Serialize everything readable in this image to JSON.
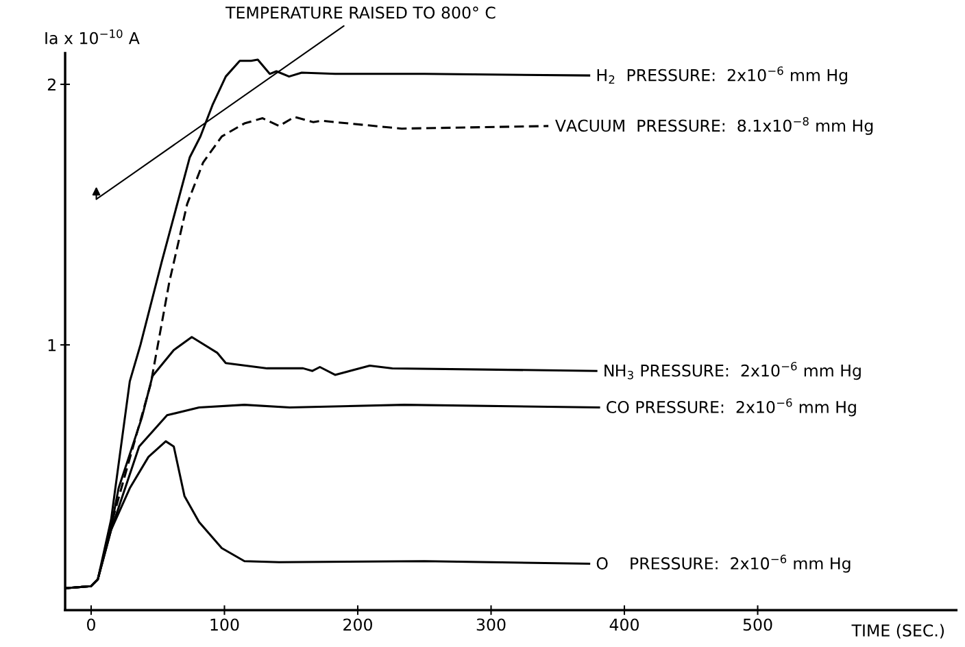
{
  "chart_data": {
    "type": "line",
    "xlabel": "TIME (SEC.)",
    "ylabel": "Ia x 10$^{−10}$ A",
    "xlim": [
      -19.5,
      649
    ],
    "ylim": [
      -0.018,
      2.12
    ],
    "xticks": [
      0,
      100,
      200,
      300,
      400,
      500
    ],
    "yticks": [
      1,
      2
    ],
    "grid": false,
    "legend": false,
    "marker": "none",
    "annotations": [
      "TEMPERATURE RAISED TO 800° C"
    ],
    "series": [
      {
        "name": "H$_{2}$  PRESSURE:  2x10$^{−6}$ mm Hg",
        "color": "#000000",
        "line_style": "solid",
        "x": [
          -19.5,
          0,
          5,
          15,
          29,
          37,
          53,
          74,
          82,
          91,
          101,
          111.5,
          120,
          125,
          134,
          139,
          148.5,
          158,
          183,
          250,
          373.6
        ],
        "values": [
          0.066,
          0.074,
          0.1,
          0.33,
          0.86,
          1.0,
          1.32,
          1.72,
          1.8,
          1.92,
          2.03,
          2.09,
          2.09,
          2.095,
          2.04,
          2.05,
          2.03,
          2.045,
          2.04,
          2.04,
          2.034
        ]
      },
      {
        "name": "VACUUM  PRESSURE:  8.1x10$^{−8}$ mm Hg",
        "color": "#000000",
        "line_style": "dashed",
        "x": [
          -19.5,
          0,
          5,
          15,
          44.7,
          58.6,
          72,
          84,
          98,
          115,
          128.5,
          141,
          152.6,
          166.5,
          173,
          233,
          343
        ],
        "values": [
          0.066,
          0.074,
          0.1,
          0.31,
          0.85,
          1.24,
          1.54,
          1.7,
          1.8,
          1.85,
          1.87,
          1.84,
          1.875,
          1.855,
          1.86,
          1.83,
          1.84
        ]
      },
      {
        "name": "NH$_{3}$ PRESSURE:  2x10$^{−6}$ mm Hg",
        "color": "#000000",
        "line_style": "solid",
        "x": [
          -19.5,
          0,
          5,
          15,
          20.6,
          38,
          46,
          62,
          75.5,
          94.5,
          101,
          132,
          159,
          166,
          171.6,
          183,
          209,
          226,
          379
        ],
        "values": [
          0.066,
          0.074,
          0.1,
          0.3,
          0.45,
          0.72,
          0.88,
          0.98,
          1.03,
          0.97,
          0.93,
          0.91,
          0.91,
          0.9,
          0.915,
          0.885,
          0.92,
          0.91,
          0.9
        ]
      },
      {
        "name": "CO PRESSURE:  2x10$^{−6}$ mm Hg",
        "color": "#000000",
        "line_style": "solid",
        "x": [
          -19.5,
          0,
          5,
          15,
          36,
          57,
          81,
          115,
          149,
          235,
          381
        ],
        "values": [
          0.066,
          0.074,
          0.1,
          0.29,
          0.61,
          0.73,
          0.76,
          0.77,
          0.76,
          0.77,
          0.76
        ]
      },
      {
        "name": "O    PRESSURE:  2x10$^{−6}$ mm Hg",
        "color": "#000000",
        "line_style": "solid",
        "x": [
          -19.5,
          0,
          5,
          15,
          29,
          43,
          56,
          62,
          70,
          81,
          98,
          115,
          141,
          250,
          373.6
        ],
        "values": [
          0.066,
          0.074,
          0.1,
          0.29,
          0.45,
          0.57,
          0.63,
          0.61,
          0.42,
          0.32,
          0.22,
          0.17,
          0.166,
          0.17,
          0.16
        ]
      }
    ]
  }
}
